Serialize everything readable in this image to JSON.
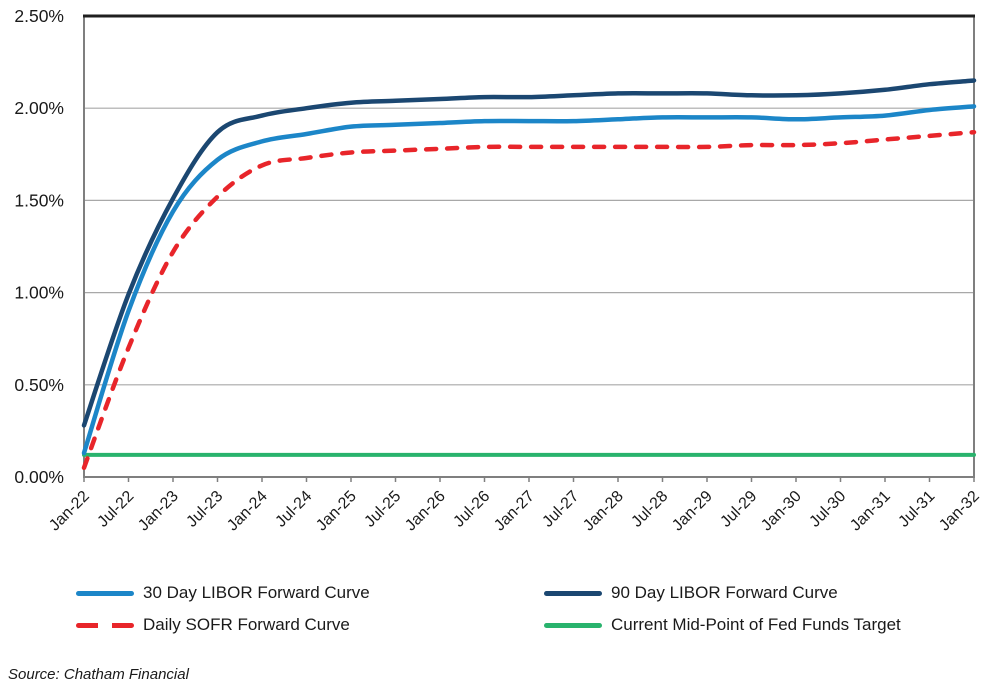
{
  "chart_data": {
    "type": "line",
    "title": "",
    "xlabel": "",
    "ylabel": "",
    "ylim": [
      0,
      2.5
    ],
    "grid": "horizontal",
    "legend_position": "bottom",
    "y_ticks": [
      "0.00%",
      "0.50%",
      "1.00%",
      "1.50%",
      "2.00%",
      "2.50%"
    ],
    "y_tick_values": [
      0,
      0.5,
      1.0,
      1.5,
      2.0,
      2.5
    ],
    "x_labels": [
      "Jan-22",
      "Jul-22",
      "Jan-23",
      "Jul-23",
      "Jan-24",
      "Jul-24",
      "Jan-25",
      "Jul-25",
      "Jan-26",
      "Jul-26",
      "Jan-27",
      "Jul-27",
      "Jan-28",
      "Jul-28",
      "Jan-29",
      "Jul-29",
      "Jan-30",
      "Jul-30",
      "Jan-31",
      "Jul-31",
      "Jan-32"
    ],
    "series": [
      {
        "name": "30 Day LIBOR Forward Curve",
        "color": "#1c86c8",
        "dash": "solid",
        "values": [
          0.13,
          0.9,
          1.44,
          1.72,
          1.82,
          1.86,
          1.9,
          1.91,
          1.92,
          1.93,
          1.93,
          1.93,
          1.94,
          1.95,
          1.95,
          1.95,
          1.94,
          1.95,
          1.96,
          1.99,
          2.01
        ]
      },
      {
        "name": "90 Day LIBOR Forward Curve",
        "color": "#1b4771",
        "dash": "solid",
        "values": [
          0.28,
          0.99,
          1.51,
          1.87,
          1.96,
          2.0,
          2.03,
          2.04,
          2.05,
          2.06,
          2.06,
          2.07,
          2.08,
          2.08,
          2.08,
          2.07,
          2.07,
          2.08,
          2.1,
          2.13,
          2.15
        ]
      },
      {
        "name": "Daily SOFR Forward Curve",
        "color": "#e8252a",
        "dash": "dashed",
        "values": [
          0.05,
          0.7,
          1.22,
          1.52,
          1.69,
          1.73,
          1.76,
          1.77,
          1.78,
          1.79,
          1.79,
          1.79,
          1.79,
          1.79,
          1.79,
          1.8,
          1.8,
          1.81,
          1.83,
          1.85,
          1.87
        ]
      },
      {
        "name": "Current Mid-Point of Fed Funds Target",
        "color": "#29b36d",
        "dash": "solid",
        "values": [
          0.12,
          0.12,
          0.12,
          0.12,
          0.12,
          0.12,
          0.12,
          0.12,
          0.12,
          0.12,
          0.12,
          0.12,
          0.12,
          0.12,
          0.12,
          0.12,
          0.12,
          0.12,
          0.12,
          0.12,
          0.12
        ]
      }
    ],
    "colors": {
      "grid": "#a8a8a8",
      "axis": "#7f7f7f",
      "top_border": "#1f1f1f",
      "text": "#1a1a1a"
    }
  },
  "source_note": "Source: Chatham Financial"
}
